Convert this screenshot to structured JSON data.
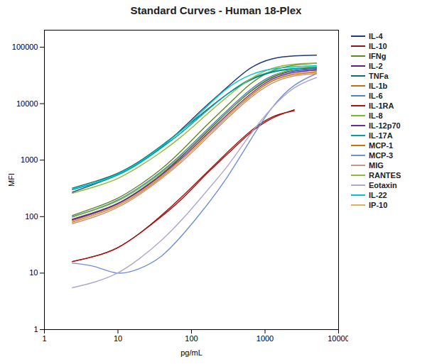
{
  "chart_data": {
    "type": "line",
    "title": "Standard Curves - Human 18-Plex",
    "xlabel": "pg/mL",
    "ylabel": "MFI",
    "log": true,
    "xlim": [
      1,
      10000
    ],
    "ylim": [
      1,
      200000
    ],
    "xticks": [
      1,
      10,
      100,
      1000,
      10000
    ],
    "yticks": [
      1,
      10,
      100,
      1000,
      10000,
      100000
    ],
    "grid": false,
    "legend": "right",
    "series": [
      {
        "name": "IL-4",
        "color": "#1e3a7a",
        "x": [
          2.4,
          4.9,
          9.8,
          19.5,
          39,
          78,
          156,
          312,
          625,
          1250,
          2500,
          5000
        ],
        "values": [
          270,
          380,
          550,
          900,
          1700,
          3800,
          9000,
          20000,
          42000,
          62000,
          70000,
          72000
        ]
      },
      {
        "name": "IL-10",
        "color": "#8b1a1a",
        "x": [
          2.4,
          4.9,
          9.8,
          19.5,
          39,
          78,
          156,
          312,
          625,
          1250,
          2500
        ],
        "values": [
          16,
          20,
          28,
          50,
          100,
          220,
          550,
          1300,
          3000,
          5500,
          7800
        ]
      },
      {
        "name": "IFNg",
        "color": "#5a8a20",
        "x": [
          2.4,
          4.9,
          9.8,
          19.5,
          39,
          78,
          156,
          312,
          625,
          1250,
          2500,
          5000
        ],
        "values": [
          105,
          145,
          210,
          360,
          700,
          1600,
          4000,
          9500,
          22000,
          38000,
          48000,
          52000
        ]
      },
      {
        "name": "IL-2",
        "color": "#5b2080",
        "x": [
          2.4,
          4.9,
          9.8,
          19.5,
          39,
          78,
          156,
          312,
          625,
          1250,
          2500,
          5000
        ],
        "values": [
          90,
          120,
          170,
          290,
          560,
          1250,
          3000,
          7200,
          16000,
          29000,
          38000,
          41000
        ]
      },
      {
        "name": "TNFa",
        "color": "#007070",
        "x": [
          2.4,
          4.9,
          9.8,
          19.5,
          39,
          78,
          156,
          312,
          625,
          1250,
          2500,
          5000
        ],
        "values": [
          320,
          420,
          580,
          950,
          1800,
          3600,
          7500,
          15000,
          26000,
          36000,
          41000,
          43000
        ]
      },
      {
        "name": "IL-1b",
        "color": "#c07010",
        "x": [
          2.4,
          4.9,
          9.8,
          19.5,
          39,
          78,
          156,
          312,
          625,
          1250,
          2500,
          5000
        ],
        "values": [
          85,
          115,
          165,
          280,
          540,
          1150,
          2700,
          6500,
          14500,
          26000,
          34000,
          37000
        ]
      },
      {
        "name": "IL-6",
        "color": "#5080d0",
        "x": [
          2.4,
          4.9,
          9.8,
          19.5,
          39,
          78,
          156,
          312,
          625,
          1250,
          2500,
          5000
        ],
        "values": [
          100,
          135,
          195,
          330,
          630,
          1380,
          3300,
          7800,
          17500,
          31000,
          39000,
          42000
        ]
      },
      {
        "name": "IL-1RA",
        "color": "#b01010",
        "x": [
          2.4,
          4.9,
          9.8,
          19.5,
          39,
          78,
          156,
          312,
          625,
          1250,
          2500
        ],
        "values": [
          16,
          20,
          28,
          50,
          105,
          240,
          580,
          1400,
          3200,
          5800,
          7500
        ]
      },
      {
        "name": "IL-8",
        "color": "#78bb22",
        "x": [
          2.4,
          4.9,
          9.8,
          19.5,
          39,
          78,
          156,
          312,
          625,
          1250,
          2500,
          5000
        ],
        "values": [
          98,
          132,
          188,
          315,
          600,
          1300,
          3100,
          7300,
          16500,
          30000,
          41000,
          45000
        ]
      },
      {
        "name": "IL-12p70",
        "color": "#6030a0",
        "x": [
          2.4,
          4.9,
          9.8,
          19.5,
          39,
          78,
          156,
          312,
          625,
          1250,
          2500,
          5000
        ],
        "values": [
          88,
          118,
          168,
          280,
          530,
          1150,
          2750,
          6500,
          14500,
          27000,
          36000,
          39000
        ]
      },
      {
        "name": "IL-17A",
        "color": "#00a0a8",
        "x": [
          2.4,
          4.9,
          9.8,
          19.5,
          39,
          78,
          156,
          312,
          625,
          1250,
          2500,
          5000
        ],
        "values": [
          300,
          390,
          540,
          880,
          1650,
          3300,
          7200,
          15000,
          27000,
          37000,
          42000,
          44000
        ]
      },
      {
        "name": "MCP-1",
        "color": "#d07000",
        "x": [
          2.4,
          4.9,
          9.8,
          19.5,
          39,
          78,
          156,
          312,
          625,
          1250,
          2500,
          5000
        ],
        "values": [
          80,
          108,
          155,
          260,
          500,
          1080,
          2550,
          6100,
          13500,
          25000,
          33000,
          36000
        ]
      },
      {
        "name": "MCP-3",
        "color": "#7090d8",
        "x": [
          2.4,
          4.9,
          9.8,
          19.5,
          39,
          78,
          156,
          312,
          625,
          1250,
          2500,
          5000
        ],
        "values": [
          15,
          13,
          10,
          12,
          20,
          50,
          150,
          520,
          2200,
          8500,
          21000,
          34000
        ]
      },
      {
        "name": "MIG",
        "color": "#c09888",
        "x": [
          2.4,
          4.9,
          9.8,
          19.5,
          39,
          78,
          156,
          312,
          625,
          1250,
          2500,
          5000
        ],
        "values": [
          75,
          100,
          145,
          245,
          470,
          1000,
          2350,
          5600,
          12500,
          23000,
          31000,
          34000
        ]
      },
      {
        "name": "RANTES",
        "color": "#90bb38",
        "x": [
          2.4,
          4.9,
          9.8,
          19.5,
          39,
          78,
          156,
          312,
          625,
          1250,
          2500,
          5000
        ],
        "values": [
          260,
          340,
          470,
          770,
          1400,
          2800,
          6200,
          13500,
          27000,
          42000,
          50000,
          52000
        ]
      },
      {
        "name": "Eotaxin",
        "color": "#b0a8cc",
        "x": [
          2.4,
          4.9,
          9.8,
          19.5,
          39,
          78,
          156,
          312,
          625,
          1250,
          2500,
          5000
        ],
        "values": [
          5.5,
          7,
          10,
          18,
          38,
          95,
          270,
          800,
          2800,
          8500,
          19000,
          29000
        ]
      },
      {
        "name": "IL-22",
        "color": "#00c8c8",
        "x": [
          2.4,
          4.9,
          9.8,
          19.5,
          39,
          78,
          156,
          312,
          625,
          1250,
          2500,
          5000
        ],
        "values": [
          310,
          400,
          560,
          920,
          1750,
          3600,
          8500,
          19000,
          32000,
          41000,
          45000,
          47000
        ]
      },
      {
        "name": "IP-10",
        "color": "#e0b060",
        "x": [
          2.4,
          4.9,
          9.8,
          19.5,
          39,
          78,
          156,
          312,
          625,
          1250,
          2500,
          5000
        ],
        "values": [
          82,
          110,
          158,
          268,
          515,
          1100,
          2600,
          6200,
          14000,
          26000,
          34000,
          37000
        ]
      }
    ]
  }
}
